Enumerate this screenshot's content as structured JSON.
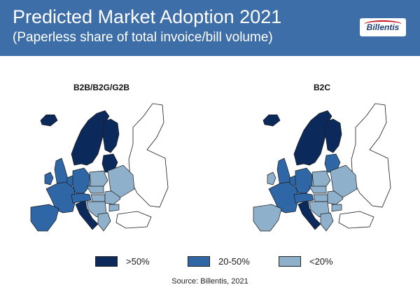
{
  "header": {
    "title": "Predicted Market Adoption 2021",
    "subtitle": "(Paperless share of total invoice/bill volume)",
    "logo_text": "Billentis"
  },
  "maps": [
    {
      "title": "B2B/B2G/G2B",
      "regions": {
        "scandinavia": "high",
        "finland": "high",
        "iceland": "high",
        "baltics": "high",
        "italy": "high",
        "ireland": "mid",
        "great-britain": "mid",
        "france": "mid",
        "iberia": "mid",
        "benelux": "mid",
        "germany": "mid",
        "alps": "mid",
        "poland": "low",
        "czech-slovakia": "low",
        "hungary": "low",
        "romania": "low",
        "bulgaria": "low",
        "balkans": "low",
        "greece": "low",
        "ukraine-belarus": "low"
      }
    },
    {
      "title": "B2C",
      "regions": {
        "scandinavia": "high",
        "finland": "high",
        "iceland": "high",
        "italy": "high",
        "baltics": "mid",
        "great-britain": "mid",
        "france": "mid",
        "benelux": "mid",
        "germany": "mid",
        "alps": "mid",
        "ireland": "low",
        "iberia": "low",
        "poland": "low",
        "czech-slovakia": "low",
        "hungary": "low",
        "romania": "low",
        "bulgaria": "low",
        "balkans": "low",
        "greece": "low",
        "ukraine-belarus": "low"
      }
    }
  ],
  "legend": [
    {
      "key": "high",
      "label": ">50%",
      "color": "#0b2a5b"
    },
    {
      "key": "mid",
      "label": "20-50%",
      "color": "#2f67a6"
    },
    {
      "key": "low",
      "label": "<20%",
      "color": "#8fb0cb"
    }
  ],
  "source": "Source: Billentis, 2021",
  "colors": {
    "header_bg": "#3d6ea7",
    "outline": "#1a1a1a",
    "non_eu": "#ffffff"
  }
}
